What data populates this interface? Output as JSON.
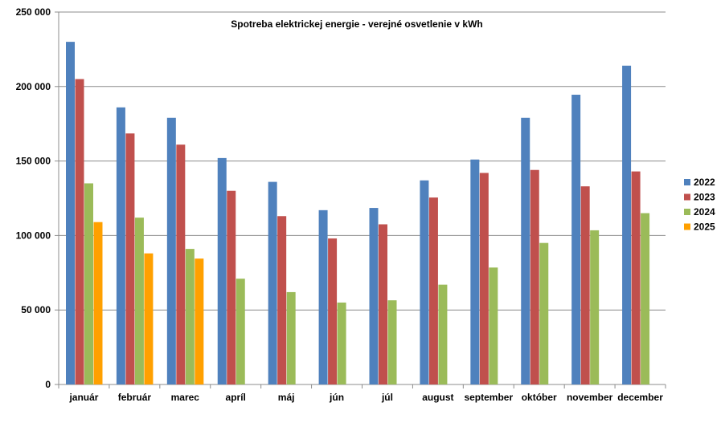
{
  "chart_data": {
    "type": "bar",
    "title": "Spotreba elektrickej energie - verejné osvetlenie v kWh",
    "xlabel": "",
    "ylabel": "",
    "ylim": [
      0,
      250000
    ],
    "yticks": [
      0,
      50000,
      100000,
      150000,
      200000,
      250000
    ],
    "ytick_labels": [
      "0",
      "50 000",
      "100 000",
      "150 000",
      "200 000",
      "250 000"
    ],
    "grid": true,
    "legend_position": "right",
    "categories": [
      "január",
      "február",
      "marec",
      "apríl",
      "máj",
      "jún",
      "júl",
      "august",
      "september",
      "október",
      "november",
      "december"
    ],
    "series": [
      {
        "name": "2022",
        "color": "#4F81BD",
        "values": [
          230000,
          186000,
          179000,
          152000,
          136000,
          117000,
          118500,
          137000,
          151000,
          179000,
          194500,
          214000
        ]
      },
      {
        "name": "2023",
        "color": "#C0504D",
        "values": [
          205000,
          168500,
          161000,
          130000,
          113000,
          98000,
          107500,
          125500,
          142000,
          144000,
          133000,
          143000
        ]
      },
      {
        "name": "2024",
        "color": "#9BBB59",
        "values": [
          135000,
          112000,
          91000,
          71000,
          62000,
          55000,
          56500,
          67000,
          78500,
          95000,
          103500,
          115000
        ]
      },
      {
        "name": "2025",
        "color": "#FFA000",
        "values": [
          109000,
          88000,
          84500,
          null,
          null,
          null,
          null,
          null,
          null,
          null,
          null,
          null
        ]
      }
    ]
  }
}
